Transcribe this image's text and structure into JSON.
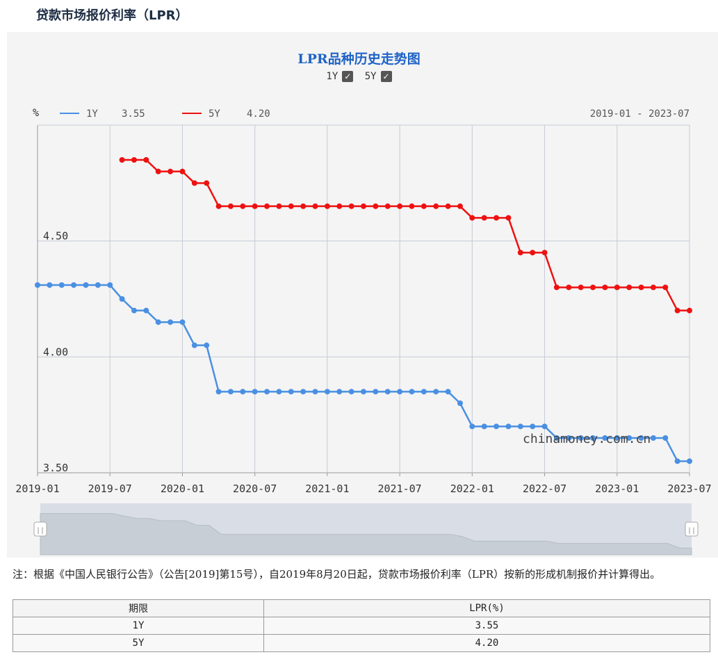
{
  "page_title": "贷款市场报价利率（LPR）",
  "chart_title": "LPR品种历史走势图",
  "toggles": [
    {
      "label": "1Y",
      "checked": true
    },
    {
      "label": "5Y",
      "checked": true
    }
  ],
  "note": "注：根据《中国人民银行公告》（公告[2019]第15号），自2019年8月20日起，贷款市场报价利率（LPR）按新的形成机制报价并计算得出。",
  "watermark": "chinamoney.com.cn",
  "table": {
    "headers": [
      "期限",
      "LPR(%)"
    ],
    "rows": [
      [
        "1Y",
        "3.55"
      ],
      [
        "5Y",
        "4.20"
      ]
    ]
  },
  "chart_data": {
    "type": "line",
    "title": "LPR品种历史走势图",
    "ylabel": "%",
    "range_label": "2019-01 - 2023-07",
    "legend_position": "top-left",
    "grid": true,
    "ylim": [
      3.5,
      5.0
    ],
    "yticks": [
      "3.50",
      "4.00",
      "4.50"
    ],
    "xticks": [
      "2019-01",
      "2019-07",
      "2020-01",
      "2020-07",
      "2021-01",
      "2021-07",
      "2022-01",
      "2022-07",
      "2023-01",
      "2023-07"
    ],
    "x": [
      "2019-01",
      "2019-02",
      "2019-03",
      "2019-04",
      "2019-05",
      "2019-06",
      "2019-07",
      "2019-08",
      "2019-09",
      "2019-10",
      "2019-11",
      "2019-12",
      "2020-01",
      "2020-02",
      "2020-03",
      "2020-04",
      "2020-05",
      "2020-06",
      "2020-07",
      "2020-08",
      "2020-09",
      "2020-10",
      "2020-11",
      "2020-12",
      "2021-01",
      "2021-02",
      "2021-03",
      "2021-04",
      "2021-05",
      "2021-06",
      "2021-07",
      "2021-08",
      "2021-09",
      "2021-10",
      "2021-11",
      "2021-12",
      "2022-01",
      "2022-02",
      "2022-03",
      "2022-04",
      "2022-05",
      "2022-06",
      "2022-07",
      "2022-08",
      "2022-09",
      "2022-10",
      "2022-11",
      "2022-12",
      "2023-01",
      "2023-02",
      "2023-03",
      "2023-04",
      "2023-05",
      "2023-06",
      "2023-07"
    ],
    "series": [
      {
        "name": "1Y",
        "legend_value": "3.55",
        "color": "#4a90e2",
        "values": [
          4.31,
          4.31,
          4.31,
          4.31,
          4.31,
          4.31,
          4.31,
          4.25,
          4.2,
          4.2,
          4.15,
          4.15,
          4.15,
          4.05,
          4.05,
          3.85,
          3.85,
          3.85,
          3.85,
          3.85,
          3.85,
          3.85,
          3.85,
          3.85,
          3.85,
          3.85,
          3.85,
          3.85,
          3.85,
          3.85,
          3.85,
          3.85,
          3.85,
          3.85,
          3.85,
          3.8,
          3.7,
          3.7,
          3.7,
          3.7,
          3.7,
          3.7,
          3.7,
          3.65,
          3.65,
          3.65,
          3.65,
          3.65,
          3.65,
          3.65,
          3.65,
          3.65,
          3.65,
          3.55,
          3.55
        ]
      },
      {
        "name": "5Y",
        "legend_value": "4.20",
        "color": "#ee1111",
        "values": [
          null,
          null,
          null,
          null,
          null,
          null,
          null,
          4.85,
          4.85,
          4.85,
          4.8,
          4.8,
          4.8,
          4.75,
          4.75,
          4.65,
          4.65,
          4.65,
          4.65,
          4.65,
          4.65,
          4.65,
          4.65,
          4.65,
          4.65,
          4.65,
          4.65,
          4.65,
          4.65,
          4.65,
          4.65,
          4.65,
          4.65,
          4.65,
          4.65,
          4.65,
          4.6,
          4.6,
          4.6,
          4.6,
          4.45,
          4.45,
          4.45,
          4.3,
          4.3,
          4.3,
          4.3,
          4.3,
          4.3,
          4.3,
          4.3,
          4.3,
          4.3,
          4.2,
          4.2
        ]
      }
    ]
  }
}
